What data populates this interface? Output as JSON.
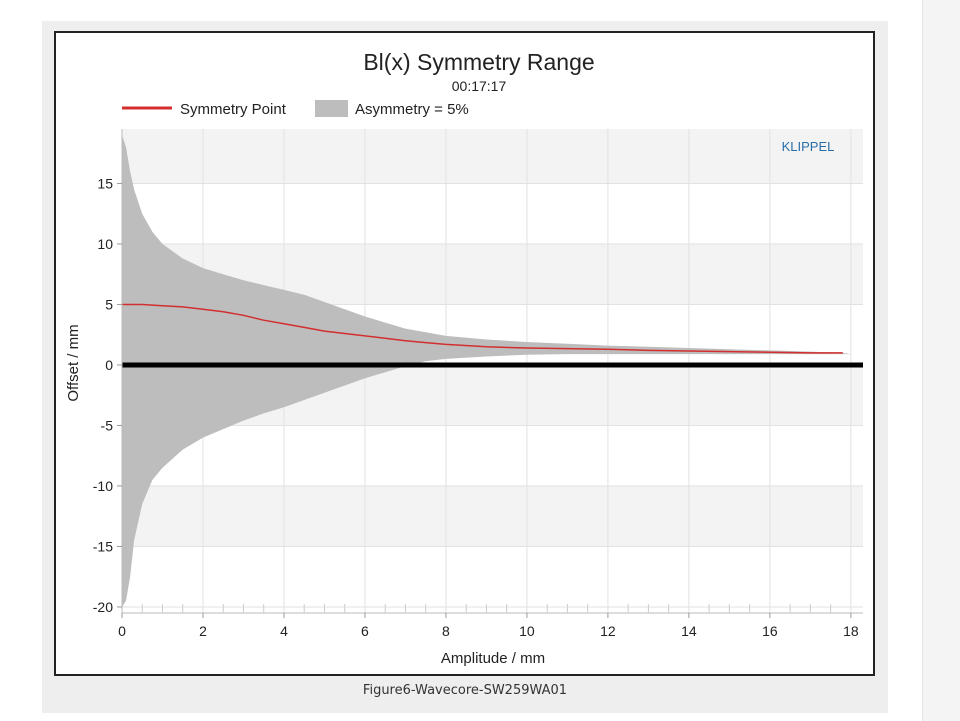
{
  "caption": "Figure6-Wavecore-SW259WA01",
  "chart_data": {
    "type": "area",
    "title": "Bl(x) Symmetry Range",
    "subtitle": "00:17:17",
    "watermark": "KLIPPEL",
    "xlabel": "Amplitude / mm",
    "ylabel": "Offset / mm",
    "xlim": [
      0,
      18.3
    ],
    "ylim": [
      -20.5,
      19.5
    ],
    "xticks": [
      0,
      2,
      4,
      6,
      8,
      10,
      12,
      14,
      16,
      18
    ],
    "yticks": [
      -20,
      -15,
      -10,
      -5,
      0,
      5,
      10,
      15
    ],
    "grid": true,
    "legend_position": "top-left",
    "legend": [
      {
        "label": "Symmetry Point",
        "kind": "line",
        "color": "#d32f2f"
      },
      {
        "label": "Asymmetry = 5%",
        "kind": "area",
        "color": "#bdbdbd"
      }
    ],
    "series": [
      {
        "name": "Symmetry Point",
        "kind": "line",
        "color": "#d32f2f",
        "x": [
          0,
          0.5,
          1,
          1.5,
          2,
          2.5,
          3,
          3.5,
          4,
          4.5,
          5,
          5.5,
          6,
          6.5,
          7,
          7.5,
          8,
          9,
          10,
          11,
          12,
          13,
          14,
          15,
          16,
          17,
          17.8
        ],
        "y": [
          5.0,
          5.0,
          4.9,
          4.8,
          4.6,
          4.4,
          4.1,
          3.7,
          3.4,
          3.1,
          2.8,
          2.6,
          2.4,
          2.2,
          2.0,
          1.85,
          1.7,
          1.5,
          1.4,
          1.35,
          1.3,
          1.2,
          1.15,
          1.1,
          1.05,
          1.0,
          1.0
        ]
      },
      {
        "name": "Asymmetry = 5%",
        "kind": "band",
        "color": "#bdbdbd",
        "x": [
          0,
          0.1,
          0.2,
          0.3,
          0.5,
          0.75,
          1,
          1.5,
          2,
          2.5,
          3,
          3.5,
          4,
          4.5,
          5,
          5.5,
          6,
          6.5,
          7,
          7.5,
          8,
          9,
          10,
          11,
          12,
          13,
          14,
          15,
          16,
          17,
          17.8,
          18
        ],
        "upper": [
          19.0,
          18.0,
          16.0,
          14.5,
          12.5,
          11.0,
          10.0,
          8.8,
          8.0,
          7.5,
          7.0,
          6.6,
          6.2,
          5.8,
          5.2,
          4.6,
          4.0,
          3.5,
          3.0,
          2.7,
          2.4,
          2.1,
          1.9,
          1.75,
          1.6,
          1.5,
          1.4,
          1.3,
          1.2,
          1.1,
          1.0,
          0.9
        ],
        "lower": [
          -20.0,
          -19.5,
          -17.5,
          -14.5,
          -11.5,
          -9.5,
          -8.5,
          -7.0,
          -6.0,
          -5.3,
          -4.6,
          -4.0,
          -3.5,
          -2.9,
          -2.3,
          -1.7,
          -1.1,
          -0.6,
          -0.1,
          0.3,
          0.5,
          0.7,
          0.85,
          0.9,
          0.9,
          0.9,
          0.9,
          0.9,
          0.9,
          0.9,
          0.9,
          0.9
        ]
      },
      {
        "name": "",
        "kind": "line",
        "color": "#000000",
        "x": [
          0,
          18.3
        ],
        "y": [
          0,
          0
        ]
      }
    ]
  }
}
